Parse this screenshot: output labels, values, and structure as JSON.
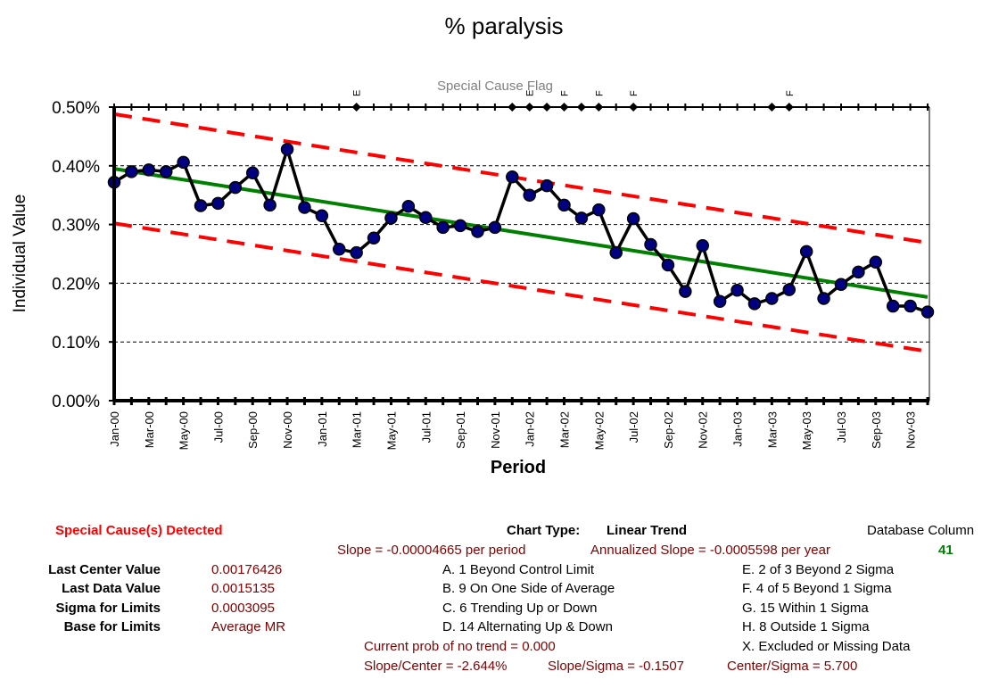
{
  "chart_data": {
    "type": "line",
    "title": "% paralysis",
    "xlabel": "Period",
    "ylabel": "Individual Value",
    "flag_title": "Special Cause Flag",
    "ylim": [
      0,
      0.005
    ],
    "y_ticks": [
      "0.00%",
      "0.10%",
      "0.20%",
      "0.30%",
      "0.40%",
      "0.50%"
    ],
    "y_tick_values": [
      0,
      0.001,
      0.002,
      0.003,
      0.004,
      0.005
    ],
    "grid": true,
    "x_labels": [
      "Jan-00",
      "Mar-00",
      "May-00",
      "Jul-00",
      "Sep-00",
      "Nov-00",
      "Jan-01",
      "Mar-01",
      "May-01",
      "Jul-01",
      "Sep-01",
      "Nov-01",
      "Jan-02",
      "Mar-02",
      "May-02",
      "Jul-02",
      "Sep-02",
      "Nov-02",
      "Jan-03",
      "Mar-03",
      "May-03",
      "Jul-03",
      "Sep-03",
      "Nov-03"
    ],
    "x_label_every": 2,
    "series": [
      {
        "name": "Individual Value",
        "color": "#000080",
        "line_color": "#000000",
        "values": [
          0.00372,
          0.0039,
          0.00393,
          0.0039,
          0.00406,
          0.00332,
          0.00336,
          0.00363,
          0.00388,
          0.00333,
          0.00428,
          0.00329,
          0.00315,
          0.00258,
          0.00252,
          0.00277,
          0.00311,
          0.00331,
          0.00312,
          0.00295,
          0.00298,
          0.00288,
          0.00295,
          0.00381,
          0.0035,
          0.00366,
          0.00333,
          0.00311,
          0.00325,
          0.00252,
          0.0031,
          0.00266,
          0.00231,
          0.00186,
          0.00264,
          0.00169,
          0.00188,
          0.00165,
          0.00174,
          0.00189,
          0.00254,
          0.00174,
          0.00198,
          0.00219,
          0.00236,
          0.00161,
          0.00161,
          0.00151
        ]
      }
    ],
    "center_line": {
      "color": "#008000",
      "start": 0.00395,
      "end": 0.00176426
    },
    "upper_limit": {
      "color": "#ff0000",
      "start": 0.00488,
      "end": 0.00269
    },
    "lower_limit": {
      "color": "#ff0000",
      "start": 0.00302,
      "end": 0.00084
    },
    "special_cause_flags": [
      {
        "index": 14,
        "label": "E"
      },
      {
        "index": 23,
        "label": ""
      },
      {
        "index": 24,
        "label": "E"
      },
      {
        "index": 25,
        "label": ""
      },
      {
        "index": 26,
        "label": "F"
      },
      {
        "index": 27,
        "label": ""
      },
      {
        "index": 28,
        "label": "F"
      },
      {
        "index": 30,
        "label": "F"
      },
      {
        "index": 38,
        "label": ""
      },
      {
        "index": 39,
        "label": "F"
      }
    ]
  },
  "footer": {
    "special_cause_detected": "Special Cause(s) Detected",
    "chart_type_label": "Chart Type:",
    "chart_type_value": "Linear Trend",
    "database_column_label": "Database Column",
    "database_column_value": "41",
    "slope": "Slope = -0.00004665 per period",
    "annualized_slope": "Annualized Slope = -0.0005598 per year",
    "last_center_value_label": "Last Center Value",
    "last_center_value": "0.00176426",
    "last_data_value_label": "Last Data Value",
    "last_data_value": "0.0015135",
    "sigma_label": "Sigma for Limits",
    "sigma_value": "0.0003095",
    "base_label": "Base for Limits",
    "base_value": "Average MR",
    "rules_left": [
      "A.  1 Beyond Control Limit",
      "B.  9 On One Side of Average",
      "C.  6 Trending Up or Down",
      "D.  14 Alternating  Up & Down"
    ],
    "rules_right": [
      "E.    2 of 3 Beyond 2 Sigma",
      "F.    4 of 5 Beyond 1 Sigma",
      "G.    15 Within 1 Sigma",
      "H.    8 Outside 1 Sigma",
      "X.    Excluded or Missing Data"
    ],
    "prob_no_trend": "Current prob of no trend = 0.000",
    "slope_center": "Slope/Center = -2.644%",
    "slope_sigma": "Slope/Sigma = -0.1507",
    "center_sigma": "Center/Sigma = 5.700"
  }
}
